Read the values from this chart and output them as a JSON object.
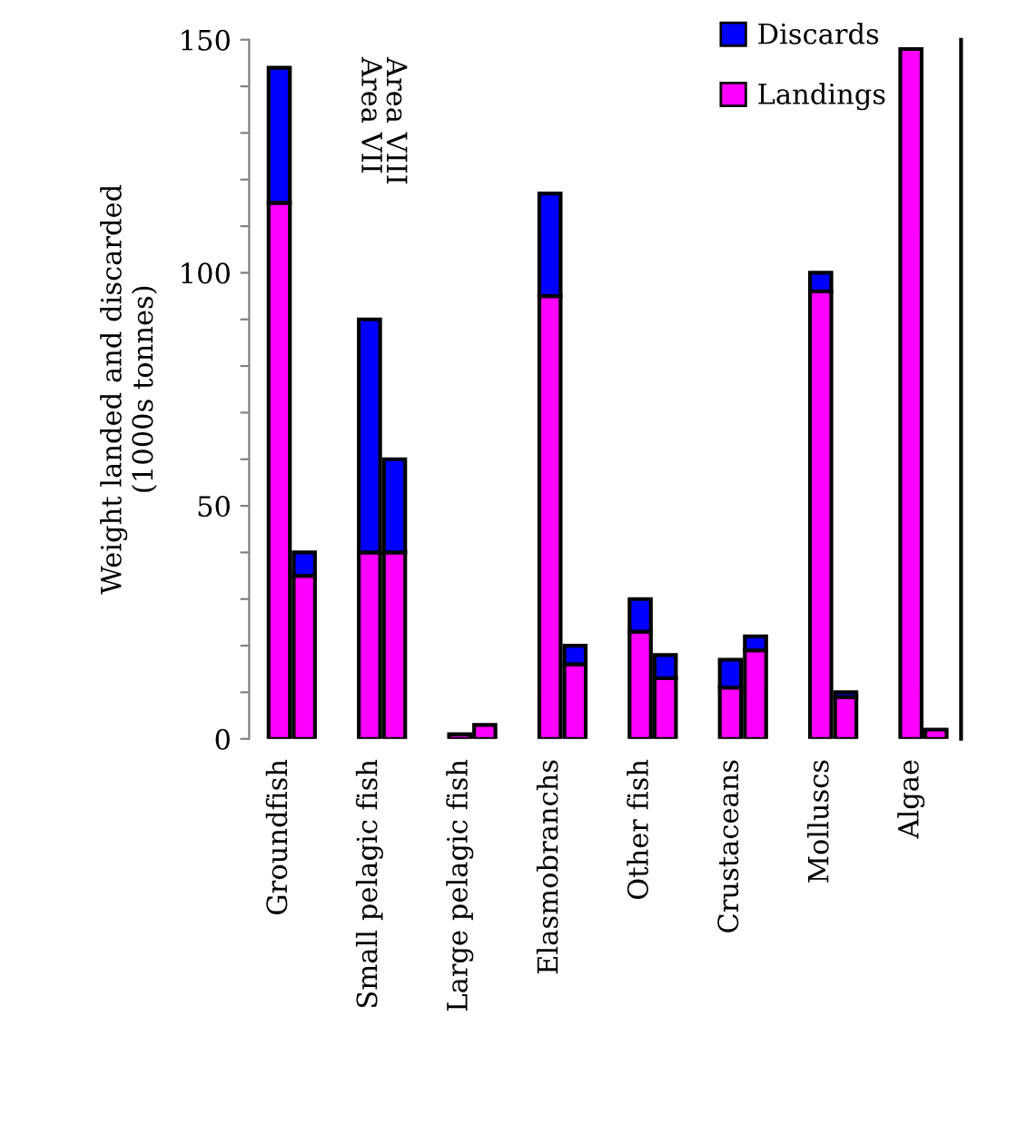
{
  "chart_data": {
    "type": "bar",
    "stacked": true,
    "ylabel": "Weight landed and discarded\n(1000s tonnes)",
    "categories": [
      "Groundfish",
      null,
      "Small pelagic fish",
      null,
      "Large pelagic fish",
      null,
      "Elasmobranchs",
      null,
      "Other fish",
      null,
      "Crustaceans",
      null,
      "Molluscs",
      null,
      "Algae",
      null
    ],
    "series": [
      {
        "name": "Landings",
        "color": "#ff00ff",
        "values": [
          115,
          35,
          40,
          40,
          1,
          3,
          95,
          16,
          23,
          13,
          11,
          19,
          96,
          9,
          148,
          2
        ]
      },
      {
        "name": "Discards",
        "color": "#0000ff",
        "values": [
          29,
          5,
          50,
          20,
          null,
          null,
          22,
          4,
          7,
          5,
          6,
          3,
          4,
          1,
          null,
          null
        ]
      }
    ],
    "ylim": [
      0,
      150
    ],
    "yticks": [
      0,
      {
        "value": 10,
        "label": null
      },
      {
        "value": 20,
        "label": null
      },
      {
        "value": 30,
        "label": null
      },
      {
        "value": 40,
        "label": null
      },
      50,
      {
        "value": 60,
        "label": null
      },
      {
        "value": 70,
        "label": null
      },
      {
        "value": 80,
        "label": null
      },
      {
        "value": 90,
        "label": null
      },
      100,
      {
        "value": 110,
        "label": null
      },
      {
        "value": 120,
        "label": null
      },
      {
        "value": 130,
        "label": null
      },
      {
        "value": 140,
        "label": null
      },
      150
    ],
    "annotations": [
      "Area VII",
      "Area VIII"
    ],
    "legend": "top right"
  }
}
